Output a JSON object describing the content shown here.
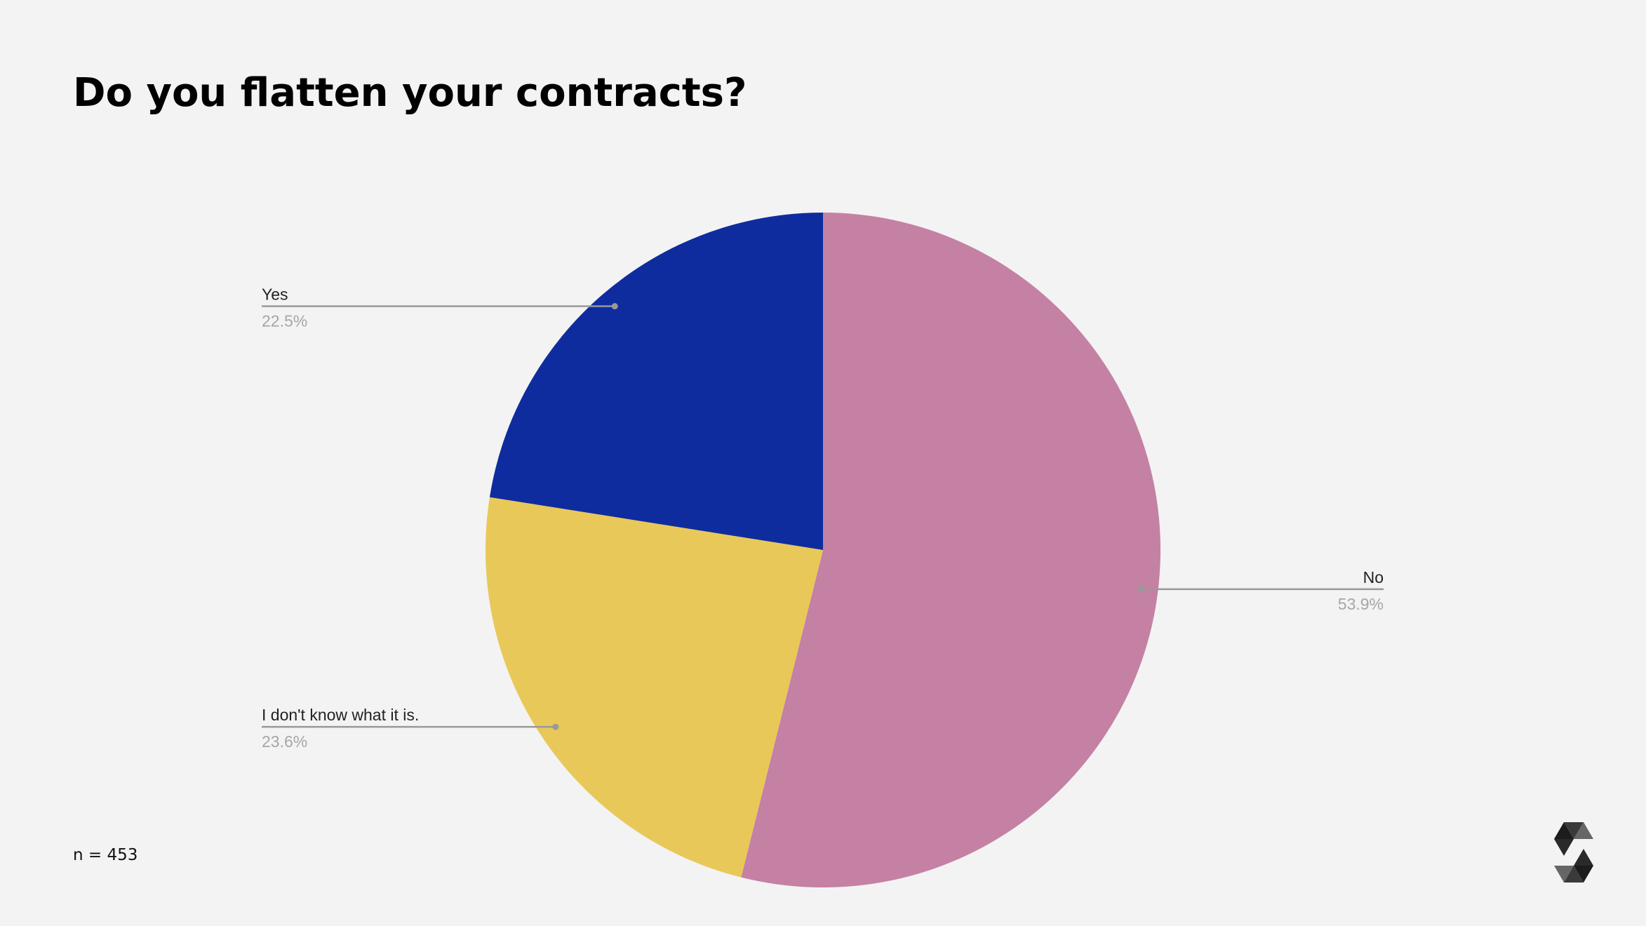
{
  "title": "Do you flatten your contracts?",
  "footnote": "n = 453",
  "logo": "solidity-logo",
  "chart_data": {
    "type": "pie",
    "title": "Do you flatten your contracts?",
    "start": "top",
    "direction": "clockwise",
    "slices": [
      {
        "label": "No",
        "value": 53.9,
        "value_label": "53.9%",
        "color": "#c481a3",
        "label_side": "right"
      },
      {
        "label": "I don't know what it is.",
        "value": 23.6,
        "value_label": "23.6%",
        "color": "#e9c85a",
        "label_side": "left"
      },
      {
        "label": "Yes",
        "value": 22.5,
        "value_label": "22.5%",
        "color": "#0f2c9e",
        "label_side": "left"
      }
    ]
  }
}
